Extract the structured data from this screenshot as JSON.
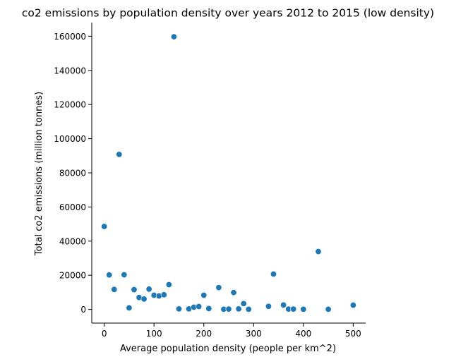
{
  "chart_data": {
    "type": "scatter",
    "title": "co2 emissions by population density over years 2012 to 2015 (low density)",
    "xlabel": "Average population density (people per km^2)",
    "ylabel": "Total co2 emissions (million tonnes)",
    "xlim": [
      -25,
      525
    ],
    "ylim": [
      -8000,
      168000
    ],
    "xticks": [
      0,
      100,
      200,
      300,
      400,
      500
    ],
    "yticks": [
      0,
      20000,
      40000,
      60000,
      80000,
      100000,
      120000,
      140000,
      160000
    ],
    "xtick_labels": [
      "0",
      "100",
      "200",
      "300",
      "400",
      "500"
    ],
    "ytick_labels": [
      "0",
      "20000",
      "40000",
      "60000",
      "80000",
      "100000",
      "120000",
      "140000",
      "160000"
    ],
    "grid": false,
    "marker_color": "#1f77b4",
    "points": [
      {
        "x": 0,
        "y": 48600
      },
      {
        "x": 10,
        "y": 20200
      },
      {
        "x": 20,
        "y": 11700
      },
      {
        "x": 30,
        "y": 90800
      },
      {
        "x": 40,
        "y": 20300
      },
      {
        "x": 50,
        "y": 900
      },
      {
        "x": 60,
        "y": 11600
      },
      {
        "x": 70,
        "y": 7000
      },
      {
        "x": 80,
        "y": 6100
      },
      {
        "x": 90,
        "y": 11900
      },
      {
        "x": 100,
        "y": 8300
      },
      {
        "x": 110,
        "y": 7900
      },
      {
        "x": 120,
        "y": 8600
      },
      {
        "x": 130,
        "y": 14500
      },
      {
        "x": 140,
        "y": 159700
      },
      {
        "x": 150,
        "y": 300
      },
      {
        "x": 170,
        "y": 300
      },
      {
        "x": 180,
        "y": 1300
      },
      {
        "x": 190,
        "y": 1700
      },
      {
        "x": 200,
        "y": 8300
      },
      {
        "x": 210,
        "y": 500
      },
      {
        "x": 230,
        "y": 12800
      },
      {
        "x": 240,
        "y": 100
      },
      {
        "x": 250,
        "y": 200
      },
      {
        "x": 260,
        "y": 9900
      },
      {
        "x": 270,
        "y": 300
      },
      {
        "x": 280,
        "y": 3400
      },
      {
        "x": 290,
        "y": 100
      },
      {
        "x": 330,
        "y": 1800
      },
      {
        "x": 340,
        "y": 20700
      },
      {
        "x": 360,
        "y": 2600
      },
      {
        "x": 370,
        "y": 200
      },
      {
        "x": 380,
        "y": 200
      },
      {
        "x": 400,
        "y": 100
      },
      {
        "x": 430,
        "y": 33900
      },
      {
        "x": 450,
        "y": 100
      },
      {
        "x": 500,
        "y": 2500
      }
    ]
  }
}
